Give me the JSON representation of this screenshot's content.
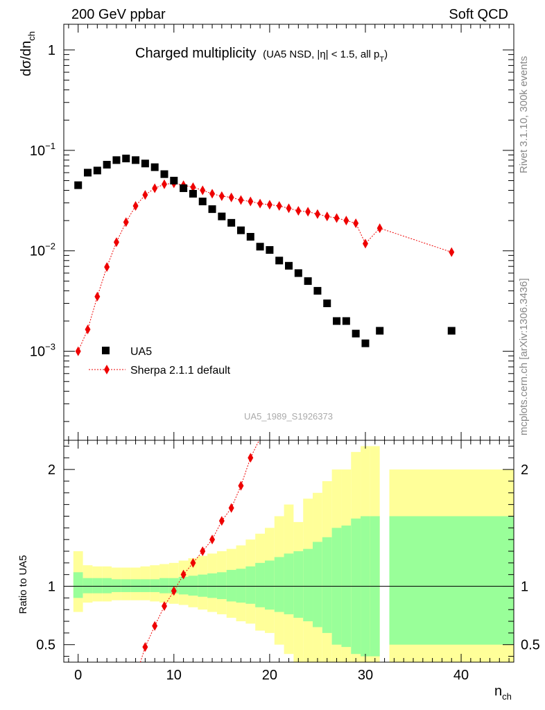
{
  "header": {
    "left": "200 GeV ppbar",
    "right": "Soft QCD"
  },
  "title": {
    "main": "Charged multiplicity",
    "sub": "(UA5 NSD, |η| < 1.5, all p",
    "sub_subscript": "T",
    "sub_close": ")"
  },
  "side_labels": {
    "rivet": "Rivet 3.1.10,  300k events",
    "mcplots": "mcplots.cern.ch [arXiv:1306.3436]"
  },
  "watermark": "UA5_1989_S1926373",
  "legend": {
    "data_label": "UA5",
    "mc_label": "Sherpa 2.1.1 default"
  },
  "colors": {
    "data": "#000000",
    "mc": "#ee0000",
    "band_inner": "#99ff99",
    "band_outer": "#ffff99"
  },
  "chart_data": [
    {
      "type": "scatter",
      "panel": "main",
      "yscale": "log",
      "ylabel": "dσ/dn",
      "ylabel_subscript": "ch",
      "xlim": [
        -1.5,
        45.5
      ],
      "ylim": [
        0.00013,
        1.8
      ],
      "yticks": [
        {
          "value": 0.001,
          "base": "10",
          "exp": "−3"
        },
        {
          "value": 0.01,
          "base": "10",
          "exp": "−2"
        },
        {
          "value": 0.1,
          "base": "10",
          "exp": "−1"
        },
        {
          "value": 1,
          "base": "1",
          "exp": ""
        }
      ],
      "series": [
        {
          "name": "UA5",
          "marker": "square",
          "x": [
            0,
            1,
            2,
            3,
            4,
            5,
            6,
            7,
            8,
            9,
            10,
            11,
            12,
            13,
            14,
            15,
            16,
            17,
            18,
            19,
            20,
            21,
            22,
            23,
            24,
            25,
            26,
            27,
            28,
            29,
            30,
            31.5,
            39
          ],
          "y": [
            0.045,
            0.06,
            0.063,
            0.072,
            0.08,
            0.083,
            0.08,
            0.074,
            0.068,
            0.058,
            0.05,
            0.042,
            0.037,
            0.031,
            0.026,
            0.022,
            0.019,
            0.016,
            0.0138,
            0.011,
            0.0102,
            0.008,
            0.0071,
            0.006,
            0.005,
            0.004,
            0.003,
            0.002,
            0.002,
            0.0015,
            0.0012,
            0.0016,
            0.0016
          ]
        },
        {
          "name": "Sherpa 2.1.1 default",
          "marker": "diamond",
          "x": [
            0,
            1,
            2,
            3,
            4,
            5,
            6,
            7,
            8,
            9,
            10,
            11,
            12,
            13,
            14,
            15,
            16,
            17,
            18,
            19,
            20,
            21,
            22,
            23,
            24,
            25,
            26,
            27,
            28,
            29,
            30,
            31.5,
            39
          ],
          "y": [
            0.001,
            0.00165,
            0.0035,
            0.0069,
            0.0122,
            0.0193,
            0.028,
            0.036,
            0.042,
            0.046,
            0.047,
            0.045,
            0.043,
            0.04,
            0.037,
            0.035,
            0.034,
            0.032,
            0.031,
            0.0295,
            0.0288,
            0.028,
            0.0265,
            0.025,
            0.0245,
            0.0232,
            0.022,
            0.0212,
            0.02,
            0.0188,
            0.0118,
            0.0168,
            0.0097
          ]
        }
      ]
    },
    {
      "type": "ratio",
      "panel": "ratio",
      "ylabel": "Ratio to UA5",
      "xlabel": "n",
      "xlabel_subscript": "ch",
      "xlim": [
        -1.5,
        45.5
      ],
      "ylim": [
        0.35,
        2.25
      ],
      "yticks": [
        0.5,
        1,
        2
      ],
      "xticks": [
        0,
        10,
        20,
        30,
        40
      ],
      "bands": {
        "edges": [
          -0.5,
          0.5,
          1.5,
          2.5,
          3.5,
          4.5,
          5.5,
          6.5,
          7.5,
          8.5,
          9.5,
          10.5,
          11.5,
          12.5,
          13.5,
          14.5,
          15.5,
          16.5,
          17.5,
          18.5,
          19.5,
          20.5,
          21.5,
          22.5,
          23.5,
          24.5,
          25.5,
          26.5,
          27.5,
          28.5,
          29.5,
          30.5,
          31.5,
          32.5,
          45.5
        ],
        "inner_lo": [
          0.9,
          0.94,
          0.94,
          0.94,
          0.95,
          0.95,
          0.95,
          0.95,
          0.95,
          0.94,
          0.94,
          0.93,
          0.92,
          0.91,
          0.9,
          0.89,
          0.87,
          0.86,
          0.85,
          0.82,
          0.8,
          0.78,
          0.76,
          0.73,
          0.7,
          0.65,
          0.6,
          0.5,
          0.48,
          0.42,
          0.4,
          0.4,
          null,
          0.5
        ],
        "inner_hi": [
          1.12,
          1.07,
          1.07,
          1.07,
          1.06,
          1.06,
          1.06,
          1.06,
          1.06,
          1.07,
          1.07,
          1.08,
          1.09,
          1.1,
          1.11,
          1.12,
          1.14,
          1.15,
          1.17,
          1.2,
          1.22,
          1.25,
          1.28,
          1.3,
          1.32,
          1.38,
          1.42,
          1.5,
          1.52,
          1.58,
          1.6,
          1.6,
          null,
          1.6
        ],
        "outer_lo": [
          0.78,
          0.86,
          0.87,
          0.87,
          0.88,
          0.88,
          0.88,
          0.88,
          0.87,
          0.86,
          0.85,
          0.84,
          0.82,
          0.8,
          0.78,
          0.76,
          0.73,
          0.7,
          0.68,
          0.62,
          0.6,
          0.5,
          0.42,
          0.3,
          0.35,
          0.3,
          0.25,
          0.2,
          0.15,
          0.1,
          0.1,
          0.1,
          null,
          0.1
        ],
        "outer_hi": [
          1.3,
          1.18,
          1.17,
          1.17,
          1.16,
          1.16,
          1.16,
          1.17,
          1.18,
          1.19,
          1.2,
          1.22,
          1.24,
          1.26,
          1.28,
          1.3,
          1.32,
          1.35,
          1.4,
          1.45,
          1.5,
          1.6,
          1.7,
          1.55,
          1.75,
          1.8,
          1.9,
          2.0,
          2.0,
          2.15,
          2.2,
          2.2,
          null,
          2.0
        ]
      },
      "series": [
        {
          "name": "Sherpa 2.1.1 default",
          "x": [
            6.5,
            7,
            8,
            9,
            10,
            11,
            12,
            13,
            14,
            15,
            16,
            17,
            18
          ],
          "y": [
            0.35,
            0.48,
            0.66,
            0.83,
            0.96,
            1.1,
            1.2,
            1.3,
            1.4,
            1.56,
            1.67,
            1.86,
            2.1
          ]
        }
      ]
    }
  ]
}
